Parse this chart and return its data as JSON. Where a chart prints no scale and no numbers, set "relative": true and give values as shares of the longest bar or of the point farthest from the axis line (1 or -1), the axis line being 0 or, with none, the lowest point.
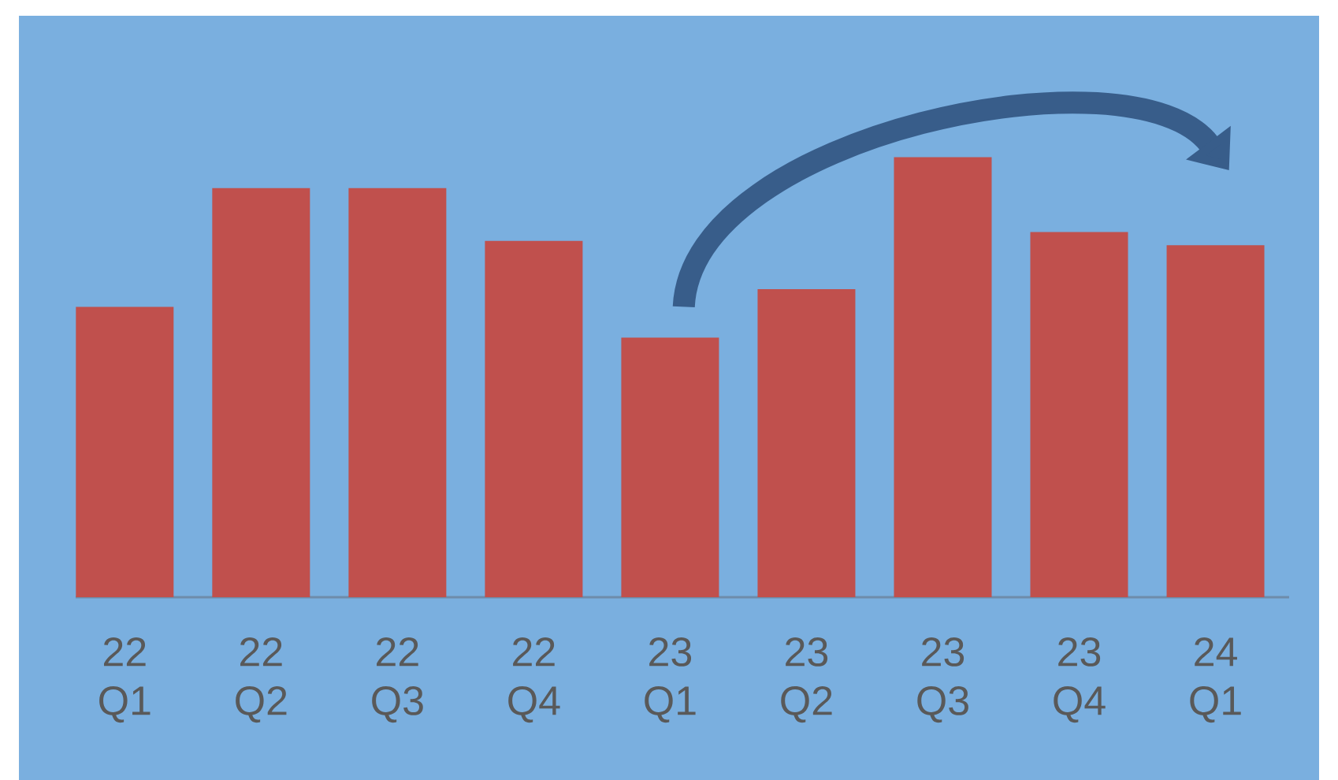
{
  "chart_data": {
    "type": "bar",
    "relative": true,
    "color": "#c0504d",
    "categories": [
      "22 Q1",
      "22 Q2",
      "22 Q3",
      "22 Q4",
      "23 Q1",
      "23 Q2",
      "23 Q3",
      "23 Q4",
      "24 Q1"
    ],
    "values": [
      0.66,
      0.93,
      0.93,
      0.81,
      0.59,
      0.7,
      1,
      0.83,
      0.8
    ]
  }
}
